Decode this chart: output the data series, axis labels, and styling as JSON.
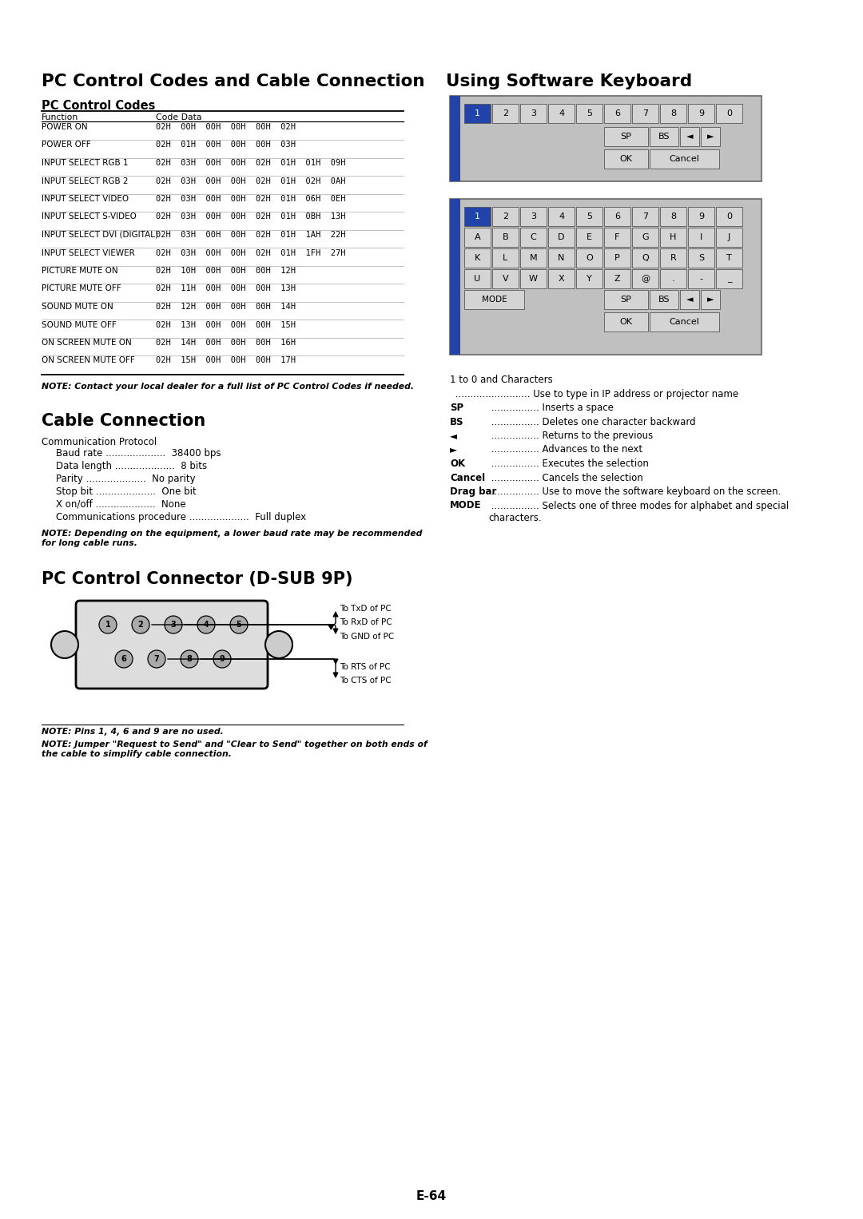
{
  "title_left": "PC Control Codes and Cable Connection",
  "title_right": "Using Software Keyboard",
  "section_pc_codes": "PC Control Codes",
  "section_cable": "Cable Connection",
  "section_connector": "PC Control Connector (D-SUB 9P)",
  "table_rows": [
    [
      "POWER ON",
      "02H  00H  00H  00H  00H  02H"
    ],
    [
      "POWER OFF",
      "02H  01H  00H  00H  00H  03H"
    ],
    [
      "INPUT SELECT RGB 1",
      "02H  03H  00H  00H  02H  01H  01H  09H"
    ],
    [
      "INPUT SELECT RGB 2",
      "02H  03H  00H  00H  02H  01H  02H  0AH"
    ],
    [
      "INPUT SELECT VIDEO",
      "02H  03H  00H  00H  02H  01H  06H  0EH"
    ],
    [
      "INPUT SELECT S-VIDEO",
      "02H  03H  00H  00H  02H  01H  0BH  13H"
    ],
    [
      "INPUT SELECT DVI (DIGITAL)",
      "02H  03H  00H  00H  02H  01H  1AH  22H"
    ],
    [
      "INPUT SELECT VIEWER",
      "02H  03H  00H  00H  02H  01H  1FH  27H"
    ],
    [
      "PICTURE MUTE ON",
      "02H  10H  00H  00H  00H  12H"
    ],
    [
      "PICTURE MUTE OFF",
      "02H  11H  00H  00H  00H  13H"
    ],
    [
      "SOUND MUTE ON",
      "02H  12H  00H  00H  00H  14H"
    ],
    [
      "SOUND MUTE OFF",
      "02H  13H  00H  00H  00H  15H"
    ],
    [
      "ON SCREEN MUTE ON",
      "02H  14H  00H  00H  00H  16H"
    ],
    [
      "ON SCREEN MUTE OFF",
      "02H  15H  00H  00H  00H  17H"
    ]
  ],
  "note1": "NOTE: Contact your local dealer for a full list of PC Control Codes if needed.",
  "comm_protocol": "Communication Protocol",
  "comm_items": [
    [
      "Baud rate",
      "38400 bps"
    ],
    [
      "Data length",
      "8 bits"
    ],
    [
      "Parity",
      "No parity"
    ],
    [
      "Stop bit",
      "One bit"
    ],
    [
      "X on/off",
      "None"
    ],
    [
      "Communications procedure",
      "Full duplex"
    ]
  ],
  "note2": "NOTE: Depending on the equipment, a lower baud rate may be recommended\nfor long cable runs.",
  "connector_note1": "NOTE: Pins 1, 4, 6 and 9 are no used.",
  "connector_note2": "NOTE: Jumper \"Request to Send\" and \"Clear to Send\" together on both ends of\nthe cable to simplify cable connection.",
  "kb_row1": [
    "1",
    "2",
    "3",
    "4",
    "5",
    "6",
    "7",
    "8",
    "9",
    "0"
  ],
  "kb_full_row1": [
    "1",
    "2",
    "3",
    "4",
    "5",
    "6",
    "7",
    "8",
    "9",
    "0"
  ],
  "kb_full_row2": [
    "A",
    "B",
    "C",
    "D",
    "E",
    "F",
    "G",
    "H",
    "I",
    "J"
  ],
  "kb_full_row3": [
    "K",
    "L",
    "M",
    "N",
    "O",
    "P",
    "Q",
    "R",
    "S",
    "T"
  ],
  "kb_full_row4": [
    "U",
    "V",
    "W",
    "X",
    "Y",
    "Z",
    "@",
    ".",
    "-",
    "_"
  ],
  "descriptions": [
    [
      "1 to 0 and Characters",
      ""
    ],
    [
      "",
      "Use to type in IP address or projector name"
    ],
    [
      "SP",
      "Inserts a space"
    ],
    [
      "BS",
      "Deletes one character backward"
    ],
    [
      "◄",
      "Returns to the previous"
    ],
    [
      "►",
      "Advances to the next"
    ],
    [
      "OK",
      "Executes the selection"
    ],
    [
      "Cancel",
      "Cancels the selection"
    ],
    [
      "Drag bar",
      "Use to move the software keyboard on the screen."
    ],
    [
      "MODE",
      "Selects one of three modes for alphabet and special\ncharacters."
    ]
  ],
  "page_number": "E-64",
  "bg_color": "#ffffff",
  "blue_color": "#2244aa",
  "key_face": "#c8c8c8",
  "panel_face": "#b8b8b8",
  "panel_edge": "#666666"
}
